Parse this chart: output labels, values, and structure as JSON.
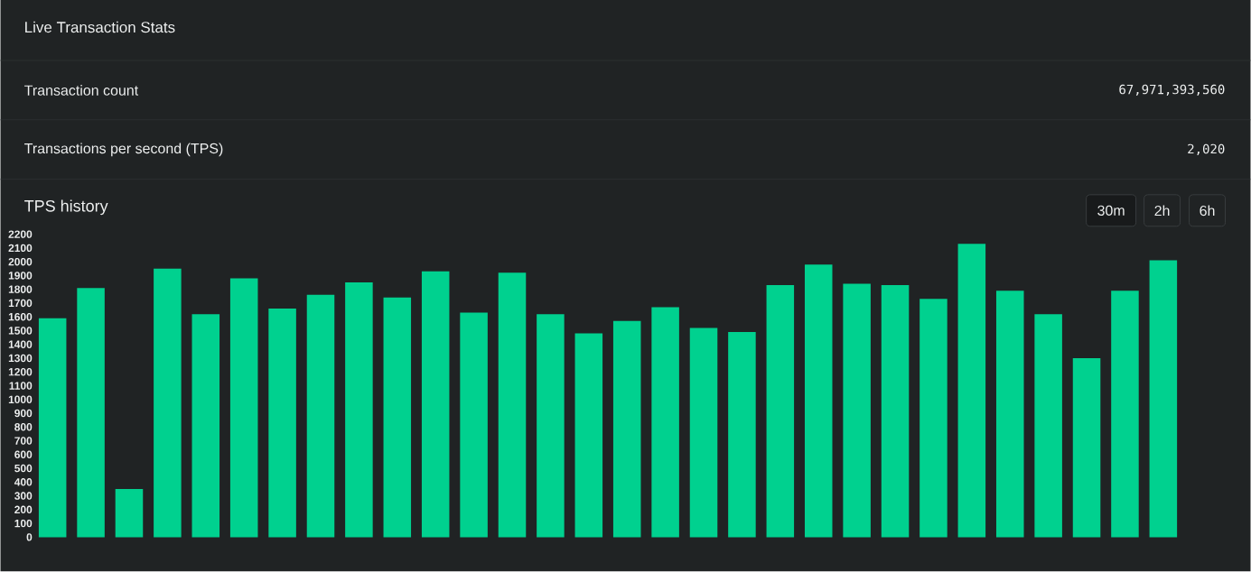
{
  "chart_data": {
    "type": "bar",
    "title": "TPS history",
    "annotations": [
      "Live Transaction Stats",
      "Transaction count",
      "67,971,393,560",
      "Transactions per second (TPS)",
      "2,020",
      "30m",
      "2h",
      "6h"
    ],
    "categories": [
      null,
      null,
      null,
      null,
      null,
      null,
      null,
      null,
      null,
      null,
      null,
      null,
      null,
      null,
      null,
      null,
      null,
      null,
      null,
      null,
      null,
      null,
      null,
      null,
      null,
      null,
      null,
      null,
      null,
      null
    ],
    "values": [
      1590,
      1810,
      350,
      1950,
      1620,
      1880,
      1660,
      1760,
      1850,
      1740,
      1930,
      1630,
      1920,
      1620,
      1480,
      1570,
      1670,
      1520,
      1490,
      1830,
      1980,
      1840,
      1830,
      1730,
      2130,
      1790,
      1620,
      1300,
      1790,
      2010
    ],
    "color": "#00d18f",
    "ylim": [
      0,
      2200
    ],
    "yticks": [
      0,
      100,
      200,
      300,
      400,
      500,
      600,
      700,
      800,
      900,
      1000,
      1100,
      1200,
      1300,
      1400,
      1500,
      1600,
      1700,
      1800,
      1900,
      2000,
      2100,
      2200
    ]
  }
}
